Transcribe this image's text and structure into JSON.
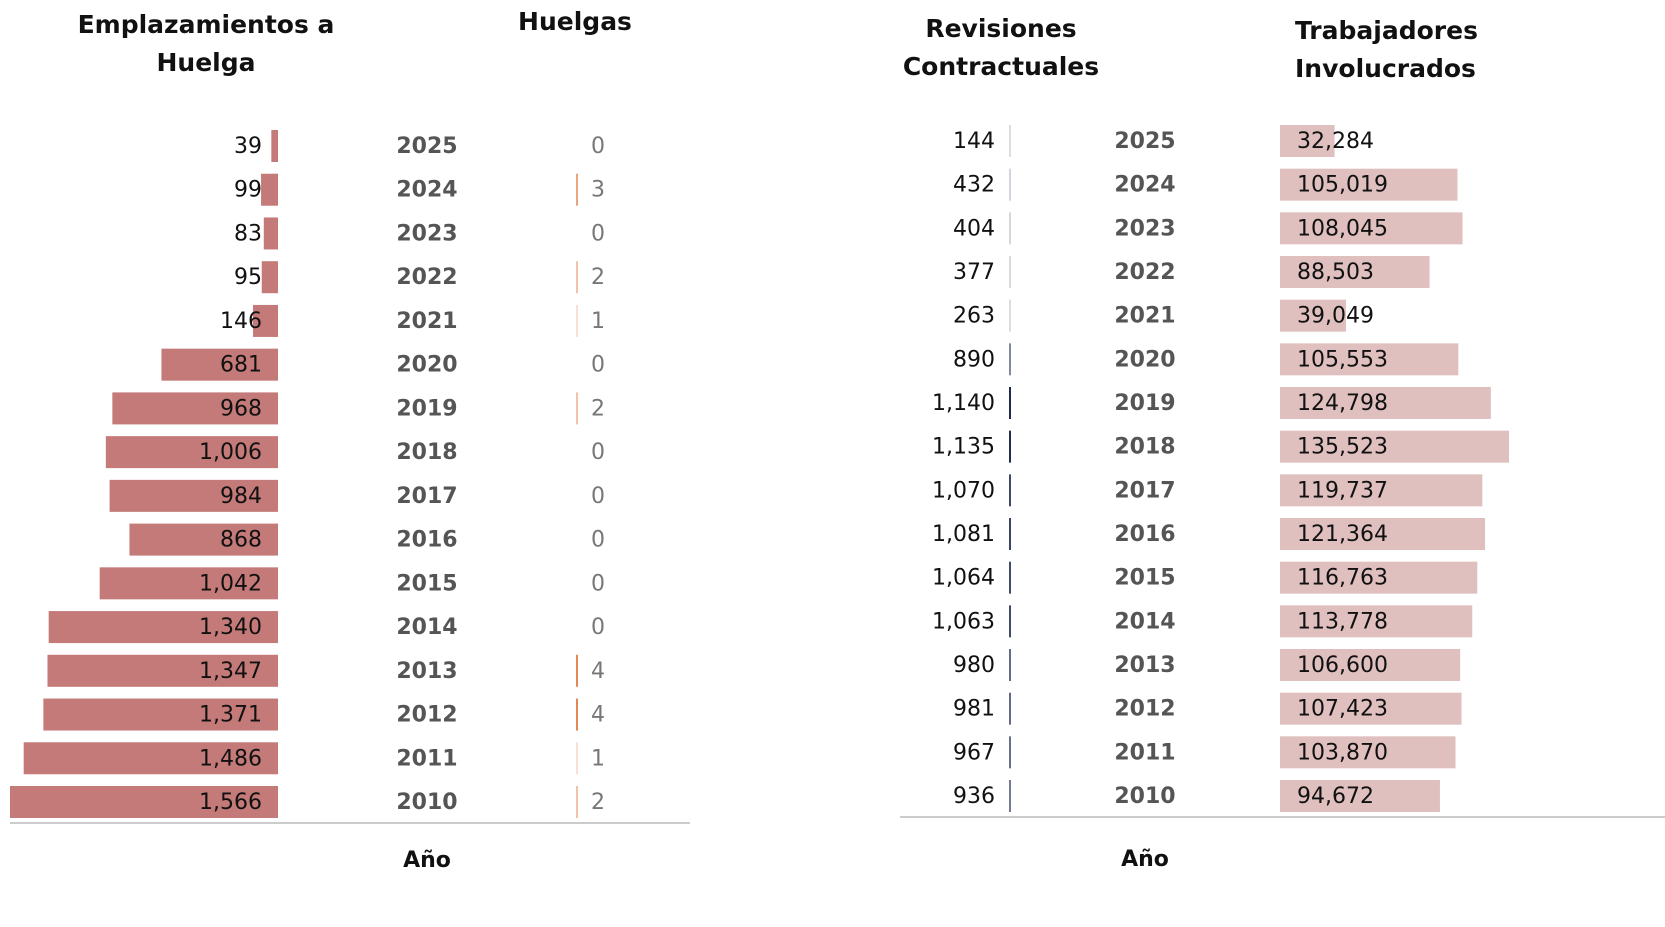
{
  "chart_data": [
    {
      "type": "bar",
      "x_label": "Año",
      "categories": [
        "2025",
        "2024",
        "2023",
        "2022",
        "2021",
        "2020",
        "2019",
        "2018",
        "2017",
        "2016",
        "2015",
        "2014",
        "2013",
        "2012",
        "2011",
        "2010"
      ],
      "series": [
        {
          "name": "Emplazamientos a Huelga",
          "color": "#c47a78",
          "values": [
            39,
            99,
            83,
            95,
            146,
            681,
            968,
            1006,
            984,
            868,
            1042,
            1340,
            1347,
            1371,
            1486,
            1566
          ],
          "value_labels": [
            "39",
            "99",
            "83",
            "95",
            "146",
            "681",
            "968",
            "1,006",
            "984",
            "868",
            "1,042",
            "1,340",
            "1,347",
            "1,371",
            "1,486",
            "1,566"
          ]
        },
        {
          "name": "Huelgas",
          "color": "#e07a40",
          "values": [
            0,
            3,
            0,
            2,
            1,
            0,
            2,
            0,
            0,
            0,
            0,
            0,
            4,
            4,
            1,
            2
          ]
        }
      ]
    },
    {
      "type": "bar",
      "x_label": "Año",
      "categories": [
        "2025",
        "2024",
        "2023",
        "2022",
        "2021",
        "2020",
        "2019",
        "2018",
        "2017",
        "2016",
        "2015",
        "2014",
        "2013",
        "2012",
        "2011",
        "2010"
      ],
      "series": [
        {
          "name": "Revisiones Contractuales",
          "color": "#1e2a4a",
          "values": [
            144,
            432,
            404,
            377,
            263,
            890,
            1140,
            1135,
            1070,
            1081,
            1064,
            1063,
            980,
            981,
            967,
            936
          ],
          "value_labels": [
            "144",
            "432",
            "404",
            "377",
            "263",
            "890",
            "1,140",
            "1,135",
            "1,070",
            "1,081",
            "1,064",
            "1,063",
            "980",
            "981",
            "967",
            "936"
          ]
        },
        {
          "name": "Trabajadores Involucrados",
          "color": "#dfc0bf",
          "values": [
            32284,
            105019,
            108045,
            88503,
            39049,
            105553,
            124798,
            135523,
            119737,
            121364,
            116763,
            113778,
            106600,
            107423,
            103870,
            94672
          ],
          "value_labels": [
            "32,284",
            "105,019",
            "108,045",
            "88,503",
            "39,049",
            "105,553",
            "124,798",
            "135,523",
            "119,737",
            "121,364",
            "116,763",
            "113,778",
            "106,600",
            "107,423",
            "103,870",
            "94,672"
          ]
        }
      ]
    }
  ]
}
